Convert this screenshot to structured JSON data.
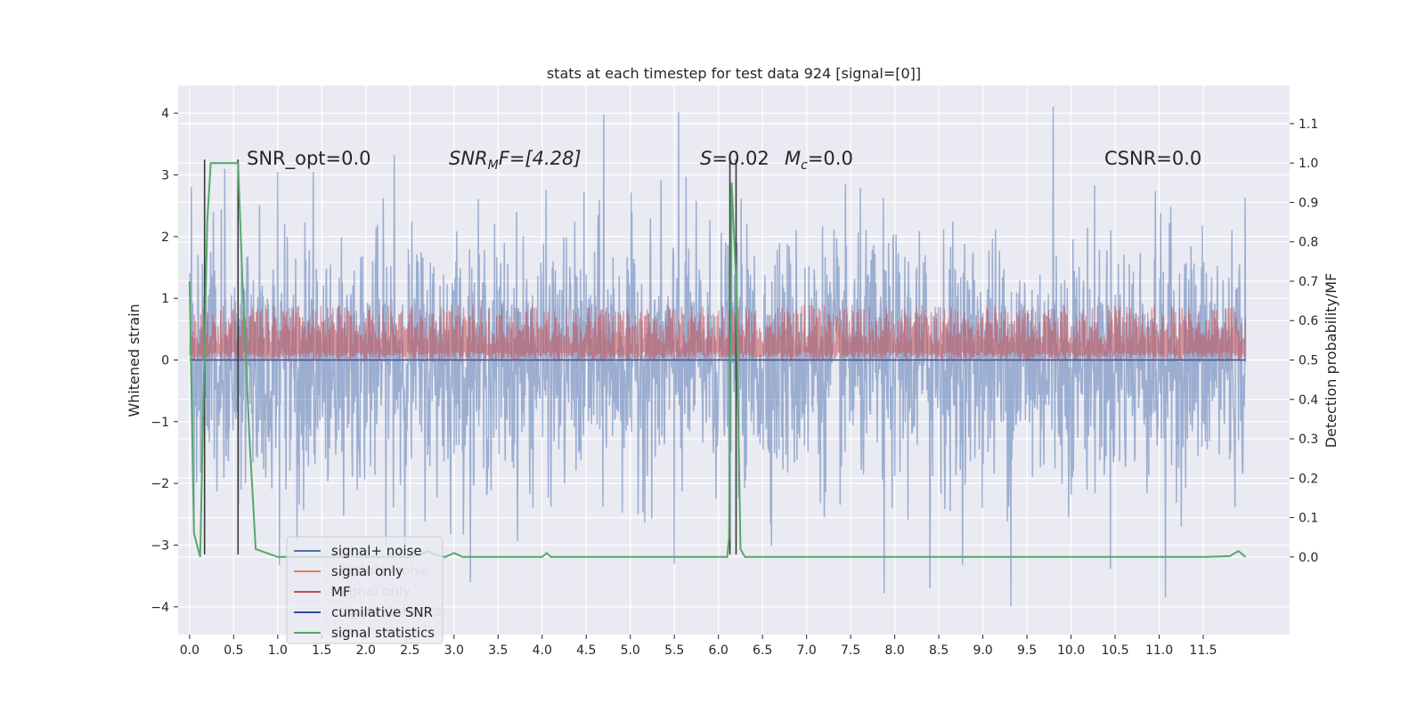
{
  "chart_data": {
    "type": "line",
    "title": "stats at each timestep for test data 924 [signal=[0]]",
    "ylabel": "Whitened strain",
    "y2label": "Detection probability/MF",
    "xlim": [
      -0.13,
      12.48
    ],
    "ylim": [
      -4.45,
      4.45
    ],
    "y2lim": [
      -0.197,
      1.197
    ],
    "xticks": [
      0.0,
      0.5,
      1.0,
      1.5,
      2.0,
      2.5,
      3.0,
      3.5,
      4.0,
      4.5,
      5.0,
      5.5,
      6.0,
      6.5,
      7.0,
      7.5,
      8.0,
      8.5,
      9.0,
      9.5,
      10.0,
      10.5,
      11.0,
      11.5
    ],
    "xtick_labels": [
      "0.0",
      "0.5",
      "1.0",
      "1.5",
      "2.0",
      "2.5",
      "3.0",
      "3.5",
      "4.0",
      "4.5",
      "5.0",
      "5.5",
      "6.0",
      "6.5",
      "7.0",
      "7.5",
      "8.0",
      "8.5",
      "9.0",
      "9.5",
      "10.0",
      "10.5",
      "11.0",
      "11.5"
    ],
    "yticks": [
      4,
      3,
      2,
      1,
      0,
      -1,
      -2,
      -3,
      -4
    ],
    "ytick_labels": [
      "4",
      "3",
      "2",
      "1",
      "0",
      "−1",
      "−2",
      "−3",
      "−4"
    ],
    "y2ticks": [
      1.1,
      1.0,
      0.9,
      0.8,
      0.7,
      0.6,
      0.5,
      0.4,
      0.3,
      0.2,
      0.1,
      0.0
    ],
    "y2tick_labels": [
      "1.1",
      "1.0",
      "0.9",
      "0.8",
      "0.7",
      "0.6",
      "0.5",
      "0.4",
      "0.3",
      "0.2",
      "0.1",
      "0.0"
    ],
    "grid": true,
    "legend_position": "lower-left",
    "legend": [
      {
        "label": "signal+ noise",
        "color": "#4c72b0"
      },
      {
        "label": "signal only",
        "color": "#dd8452"
      },
      {
        "label": "MF",
        "color": "#c44e52"
      },
      {
        "label": "cumilative SNR",
        "color": "#2f4b9b"
      },
      {
        "label": "signal statistics",
        "color": "#55a868"
      }
    ],
    "ghost_legend_labels": [
      "signal+ noise",
      "signal only",
      "signal statistics"
    ],
    "annotations": {
      "snr_opt": "SNR_opt=0.0",
      "snr_mf_symbol": "SNR",
      "snr_mf_sub": "M",
      "snr_mf_rest": "F=[4.28]",
      "s_symbol": "S",
      "s_rest": "=0.02",
      "mc_symbol": "M",
      "mc_sub": "c",
      "mc_rest": "=0.0",
      "csnr": "CSNR=0.0"
    },
    "series": [
      {
        "name": "signal+ noise",
        "color": "#4c72b0",
        "x_range": [
          0.0,
          11.98
        ],
        "mean": 0.0,
        "std": 1.0,
        "extremes": [
          [
            0.0,
            1.35
          ],
          [
            0.02,
            2.8
          ],
          [
            0.05,
            -2.7
          ],
          [
            1.0,
            3.05
          ],
          [
            2.32,
            3.32
          ],
          [
            4.7,
            3.98
          ],
          [
            5.55,
            4.02
          ],
          [
            5.5,
            -3.3
          ],
          [
            9.32,
            -4.0
          ],
          [
            9.8,
            4.1
          ],
          [
            11.07,
            -3.85
          ],
          [
            7.88,
            -3.78
          ],
          [
            0.4,
            3.1
          ],
          [
            8.4,
            -3.7
          ]
        ]
      },
      {
        "name": "signal only",
        "color": "#dd8452",
        "x_range": [
          0.0,
          11.98
        ],
        "values": [
          0.0
        ]
      },
      {
        "name": "MF",
        "color": "#c44e52",
        "x_range": [
          0.0,
          11.98
        ],
        "y_axis": "right",
        "baseline": 0.5,
        "band": [
          0.5,
          0.64
        ]
      },
      {
        "name": "cumilative SNR",
        "color": "#2f4b9b",
        "x_range": [
          0.0,
          11.98
        ],
        "values": [
          0.0
        ]
      },
      {
        "name": "signal statistics",
        "color": "#55a868",
        "y_axis": "right",
        "x": [
          0.0,
          0.05,
          0.12,
          0.2,
          0.24,
          0.3,
          0.45,
          0.55,
          0.6,
          0.68,
          0.75,
          1.0,
          1.5,
          2.0,
          2.5,
          2.6,
          2.7,
          2.8,
          2.9,
          3.0,
          3.1,
          3.2,
          3.5,
          4.0,
          4.05,
          4.1,
          4.5,
          5.0,
          5.5,
          6.0,
          6.1,
          6.12,
          6.15,
          6.2,
          6.25,
          6.3,
          7.0,
          8.0,
          9.0,
          10.0,
          10.5,
          11.0,
          11.5,
          11.8,
          11.9,
          11.98
        ],
        "y": [
          0.7,
          0.06,
          0.0,
          0.85,
          1.0,
          1.0,
          1.0,
          1.0,
          0.7,
          0.3,
          0.02,
          0.0,
          0.0,
          0.0,
          0.0,
          0.005,
          0.015,
          0.005,
          0.0,
          0.01,
          0.0,
          0.0,
          0.0,
          0.0,
          0.01,
          0.0,
          0.0,
          0.0,
          0.0,
          0.0,
          0.0,
          0.05,
          0.95,
          0.7,
          0.02,
          0.0,
          0.0,
          0.0,
          0.0,
          0.0,
          0.0,
          0.0,
          0.0,
          0.002,
          0.015,
          0.0
        ]
      }
    ],
    "vertical_markers": [
      {
        "x": 0.17,
        "color": "#3a3a3a",
        "y_from": -3.15,
        "y_to": 3.25
      },
      {
        "x": 0.55,
        "color": "#3a3a3a",
        "y_from": -3.15,
        "y_to": 3.25
      },
      {
        "x": 6.13,
        "color": "#3a3a3a",
        "y_from": -3.15,
        "y_to": 3.25
      },
      {
        "x": 6.2,
        "color": "#3a3a3a",
        "y_from": -3.15,
        "y_to": 3.25
      }
    ]
  }
}
